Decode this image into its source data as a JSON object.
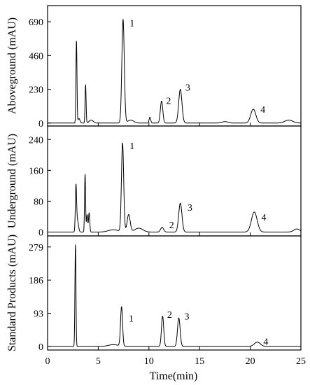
{
  "chart_data": {
    "type": "line",
    "xlabel": "Time(min)",
    "xlim": [
      0,
      25
    ],
    "x_ticks": [
      0,
      5,
      10,
      15,
      20,
      25
    ],
    "panels": [
      {
        "ylabel": "Aboveground (mAU)",
        "ylim": [
          -20,
          800
        ],
        "y_ticks": [
          0,
          230,
          460,
          690
        ],
        "peaks": [
          {
            "x": 2.85,
            "y": 560,
            "w": 0.05
          },
          {
            "x": 3.1,
            "y": 30,
            "w": 0.1
          },
          {
            "x": 3.75,
            "y": 260,
            "w": 0.05
          },
          {
            "x": 4.3,
            "y": 20,
            "w": 0.2
          },
          {
            "x": 7.45,
            "y": 705,
            "w": 0.12
          },
          {
            "x": 8.2,
            "y": 20,
            "w": 0.3
          },
          {
            "x": 10.1,
            "y": 40,
            "w": 0.08
          },
          {
            "x": 11.25,
            "y": 150,
            "w": 0.12
          },
          {
            "x": 13.1,
            "y": 230,
            "w": 0.16
          },
          {
            "x": 17.5,
            "y": 10,
            "w": 0.3
          },
          {
            "x": 20.3,
            "y": 95,
            "w": 0.25
          },
          {
            "x": 23.8,
            "y": 20,
            "w": 0.4
          }
        ],
        "annotations": [
          {
            "text": "1",
            "x": 8.1,
            "y": 660
          },
          {
            "text": "2",
            "x": 11.7,
            "y": 130
          },
          {
            "text": "3",
            "x": 13.6,
            "y": 220
          },
          {
            "text": "4",
            "x": 21.0,
            "y": 70
          }
        ]
      },
      {
        "ylabel": "Underground (mAU)",
        "ylim": [
          -10,
          275
        ],
        "y_ticks": [
          0,
          80,
          160,
          240
        ],
        "peaks": [
          {
            "x": 2.8,
            "y": 115,
            "w": 0.06
          },
          {
            "x": 2.95,
            "y": 30,
            "w": 0.1
          },
          {
            "x": 3.7,
            "y": 150,
            "w": 0.05
          },
          {
            "x": 3.9,
            "y": 45,
            "w": 0.06
          },
          {
            "x": 4.1,
            "y": 50,
            "w": 0.06
          },
          {
            "x": 6.5,
            "y": 6,
            "w": 0.5
          },
          {
            "x": 7.4,
            "y": 230,
            "w": 0.11
          },
          {
            "x": 8.0,
            "y": 45,
            "w": 0.15
          },
          {
            "x": 9.0,
            "y": 10,
            "w": 0.4
          },
          {
            "x": 11.3,
            "y": 12,
            "w": 0.15
          },
          {
            "x": 13.1,
            "y": 75,
            "w": 0.16
          },
          {
            "x": 20.4,
            "y": 52,
            "w": 0.28
          },
          {
            "x": 24.6,
            "y": 8,
            "w": 0.3
          }
        ],
        "annotations": [
          {
            "text": "1",
            "x": 8.1,
            "y": 215
          },
          {
            "text": "2",
            "x": 12.0,
            "y": 10
          },
          {
            "text": "3",
            "x": 13.8,
            "y": 55
          },
          {
            "text": "4",
            "x": 21.1,
            "y": 30
          }
        ]
      },
      {
        "ylabel": "Standard Products (mAU)",
        "ylim": [
          -10,
          310
        ],
        "y_ticks": [
          0,
          93,
          186,
          279
        ],
        "peaks": [
          {
            "x": 2.75,
            "y": 285,
            "w": 0.05
          },
          {
            "x": 6.5,
            "y": 5,
            "w": 0.5
          },
          {
            "x": 7.3,
            "y": 110,
            "w": 0.1
          },
          {
            "x": 11.35,
            "y": 85,
            "w": 0.11
          },
          {
            "x": 12.95,
            "y": 80,
            "w": 0.13
          },
          {
            "x": 20.7,
            "y": 12,
            "w": 0.3
          }
        ],
        "annotations": [
          {
            "text": "1",
            "x": 8.0,
            "y": 70
          },
          {
            "text": "2",
            "x": 11.8,
            "y": 80
          },
          {
            "text": "3",
            "x": 13.5,
            "y": 75
          },
          {
            "text": "4",
            "x": 21.3,
            "y": 5
          }
        ]
      }
    ]
  }
}
